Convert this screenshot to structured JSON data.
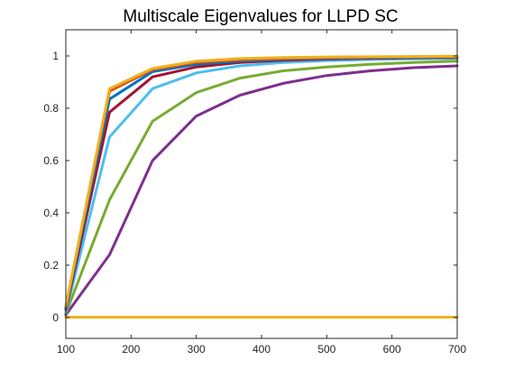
{
  "chart_data": {
    "type": "line",
    "title": "Multiscale Eigenvalues for LLPD SC",
    "xlabel": "",
    "ylabel": "",
    "xlim": [
      100,
      700
    ],
    "ylim": [
      -0.08,
      1.1
    ],
    "xticks": [
      100,
      200,
      300,
      400,
      500,
      600,
      700
    ],
    "yticks": [
      0,
      0.2,
      0.4,
      0.6,
      0.8,
      1
    ],
    "ytick_labels": [
      "0",
      "0.2",
      "0.4",
      "0.6",
      "0.8",
      "1"
    ],
    "grid": false,
    "x": [
      100,
      167,
      233,
      300,
      367,
      433,
      500,
      567,
      633,
      700
    ],
    "series": [
      {
        "color": "#EDB120",
        "values": [
          0.001,
          0.001,
          0.001,
          0.001,
          0.001,
          0.001,
          0.001,
          0.001,
          0.001,
          0.001
        ]
      },
      {
        "color": "#7E2F8E",
        "values": [
          0.01,
          0.24,
          0.6,
          0.77,
          0.85,
          0.895,
          0.925,
          0.943,
          0.955,
          0.962
        ]
      },
      {
        "color": "#77AC30",
        "values": [
          0.015,
          0.45,
          0.75,
          0.86,
          0.915,
          0.943,
          0.958,
          0.968,
          0.975,
          0.98
        ]
      },
      {
        "color": "#4DBEEE",
        "values": [
          0.02,
          0.69,
          0.875,
          0.935,
          0.962,
          0.975,
          0.982,
          0.986,
          0.989,
          0.991
        ]
      },
      {
        "color": "#A2142F",
        "values": [
          0.03,
          0.785,
          0.92,
          0.958,
          0.975,
          0.983,
          0.988,
          0.991,
          0.993,
          0.994
        ]
      },
      {
        "color": "#0072BD",
        "values": [
          0.035,
          0.835,
          0.94,
          0.968,
          0.98,
          0.987,
          0.99,
          0.993,
          0.994,
          0.995
        ]
      },
      {
        "color": "#D95319",
        "values": [
          0.04,
          0.865,
          0.948,
          0.975,
          0.985,
          0.99,
          0.993,
          0.995,
          0.996,
          0.997
        ]
      },
      {
        "color": "#EDB120",
        "values": [
          0.045,
          0.875,
          0.952,
          0.98,
          0.99,
          0.994,
          0.996,
          0.997,
          0.998,
          0.999
        ]
      }
    ]
  }
}
